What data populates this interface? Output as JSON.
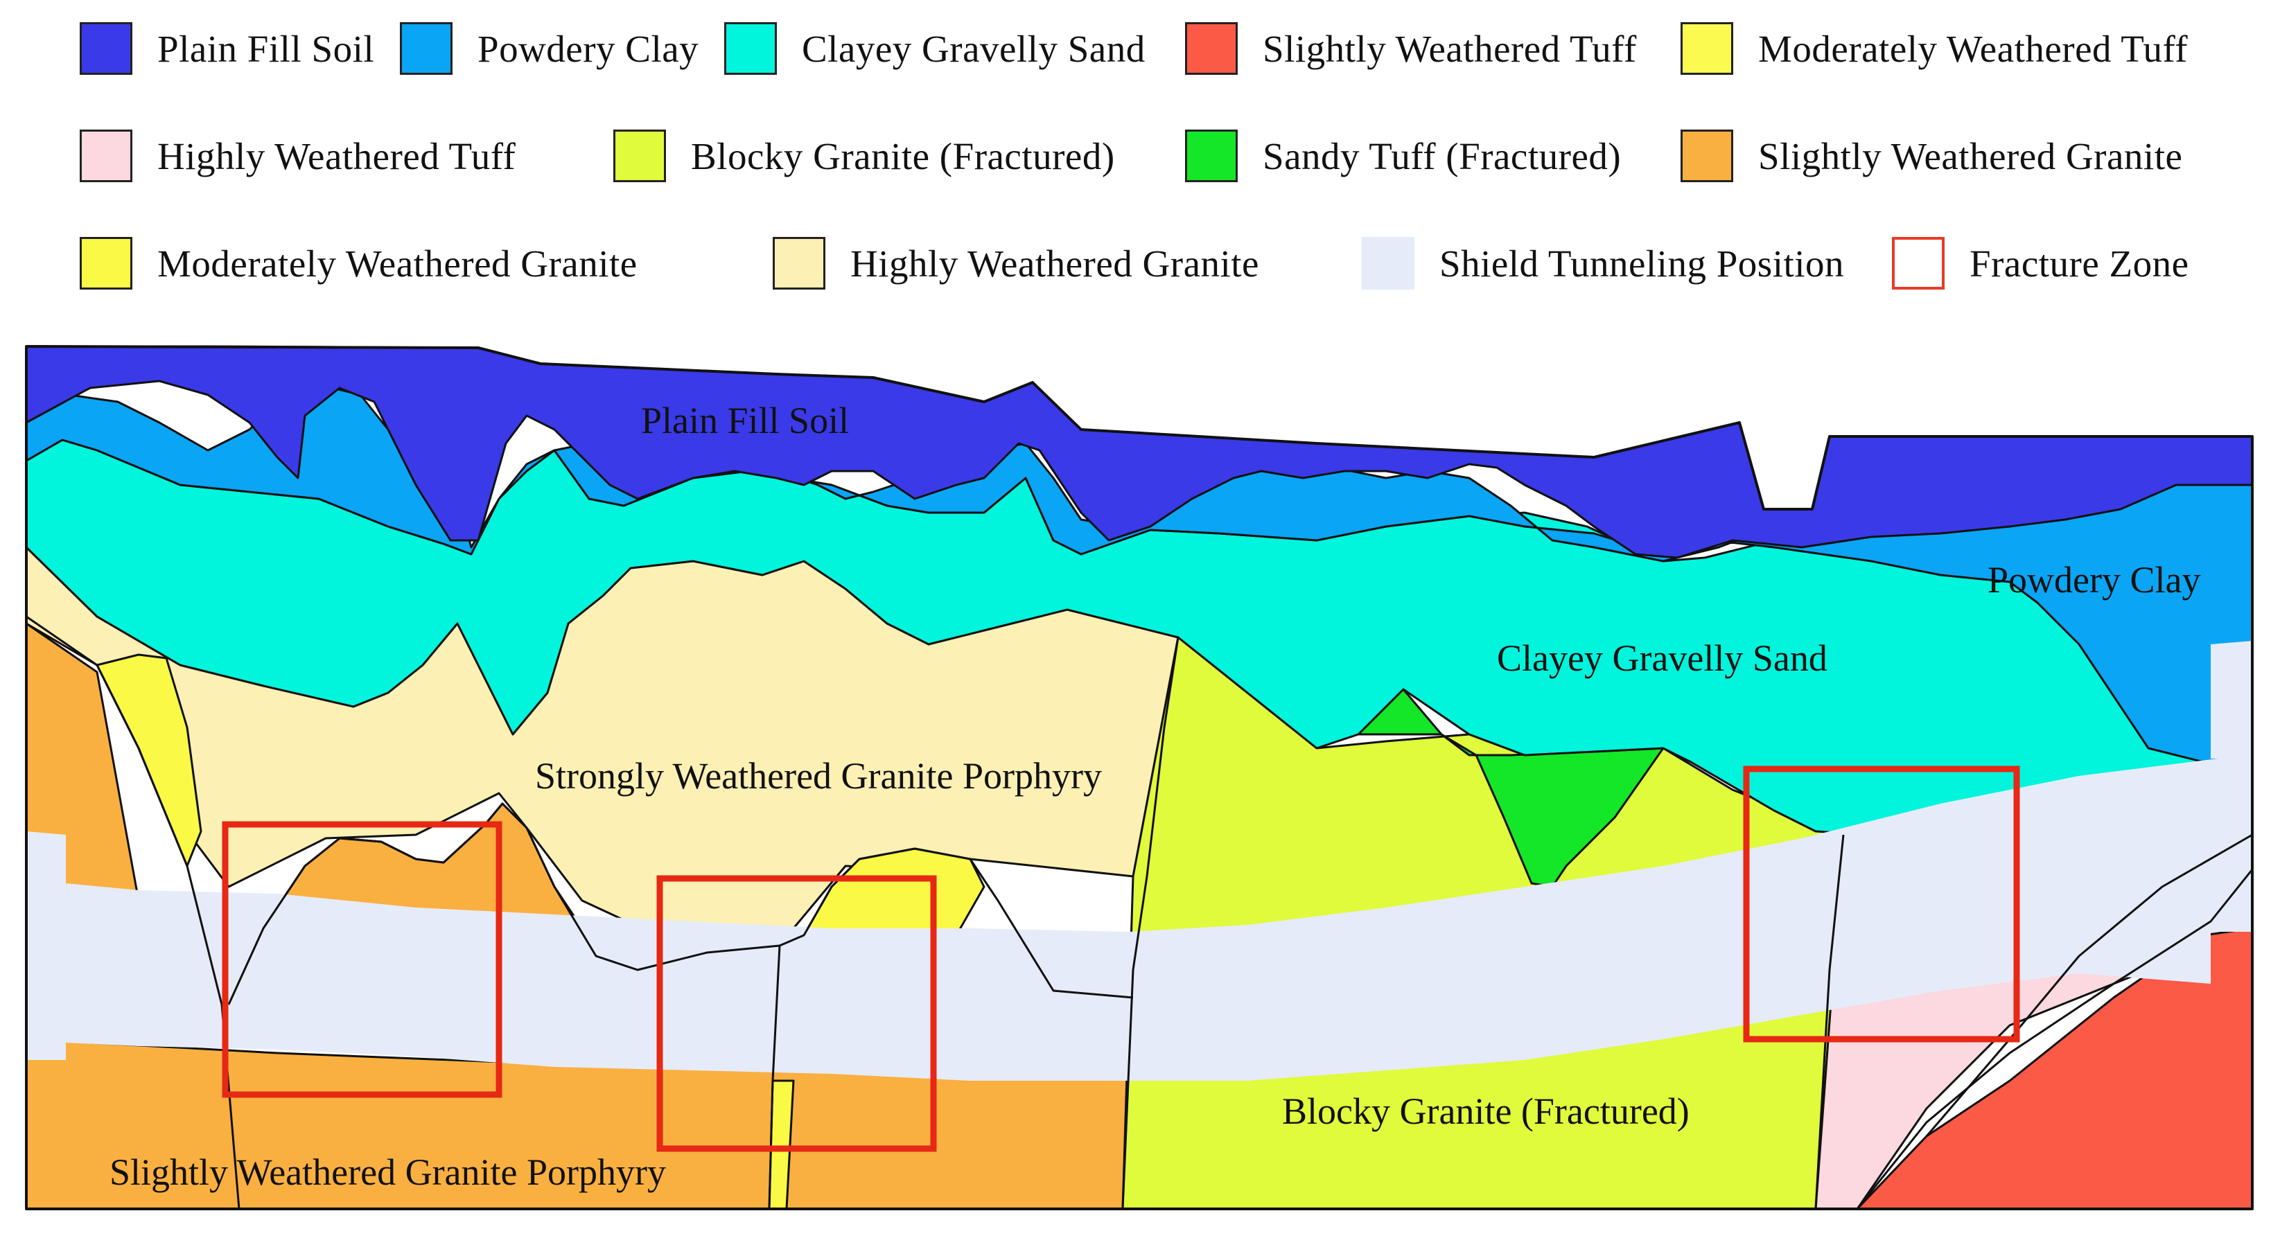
{
  "legend": {
    "items": [
      {
        "label": "Plain Fill Soil",
        "color": "#3a3ae8"
      },
      {
        "label": "Powdery Clay",
        "color": "#0aa5f5"
      },
      {
        "label": "Clayey Gravelly Sand",
        "color": "#00f5dc"
      },
      {
        "label": "Slightly Weathered Tuff",
        "color": "#fa5a46"
      },
      {
        "label": "Moderately Weathered Tuff",
        "color": "#fafa50"
      },
      {
        "label": "Highly Weathered Tuff",
        "color": "#fcd8e0"
      },
      {
        "label": "Blocky Granite (Fractured)",
        "color": "#e0fa3c"
      },
      {
        "label": "Sandy Tuff (Fractured)",
        "color": "#14e628"
      },
      {
        "label": "Slightly Weathered Granite",
        "color": "#fab040"
      },
      {
        "label": "Moderately Weathered Granite",
        "color": "#fafa46"
      },
      {
        "label": "Highly Weathered Granite",
        "color": "#fcf0b4"
      },
      {
        "label": "Shield Tunneling Position",
        "color": "#e6ebfa"
      },
      {
        "label": "Fracture Zone",
        "color": "#e63c28",
        "outline": true
      }
    ]
  },
  "section": {
    "labels": {
      "plain_fill": "Plain Fill Soil",
      "powdery_clay": "Powdery Clay",
      "clayey_sand": "Clayey Gravelly Sand",
      "strong_porphyry": "Strongly Weathered Granite Porphyry",
      "blocky_granite": "Blocky Granite (Fractured)",
      "slight_porphyry": "Slightly Weathered Granite Porphyry"
    },
    "fracture_zone_count": 3
  }
}
